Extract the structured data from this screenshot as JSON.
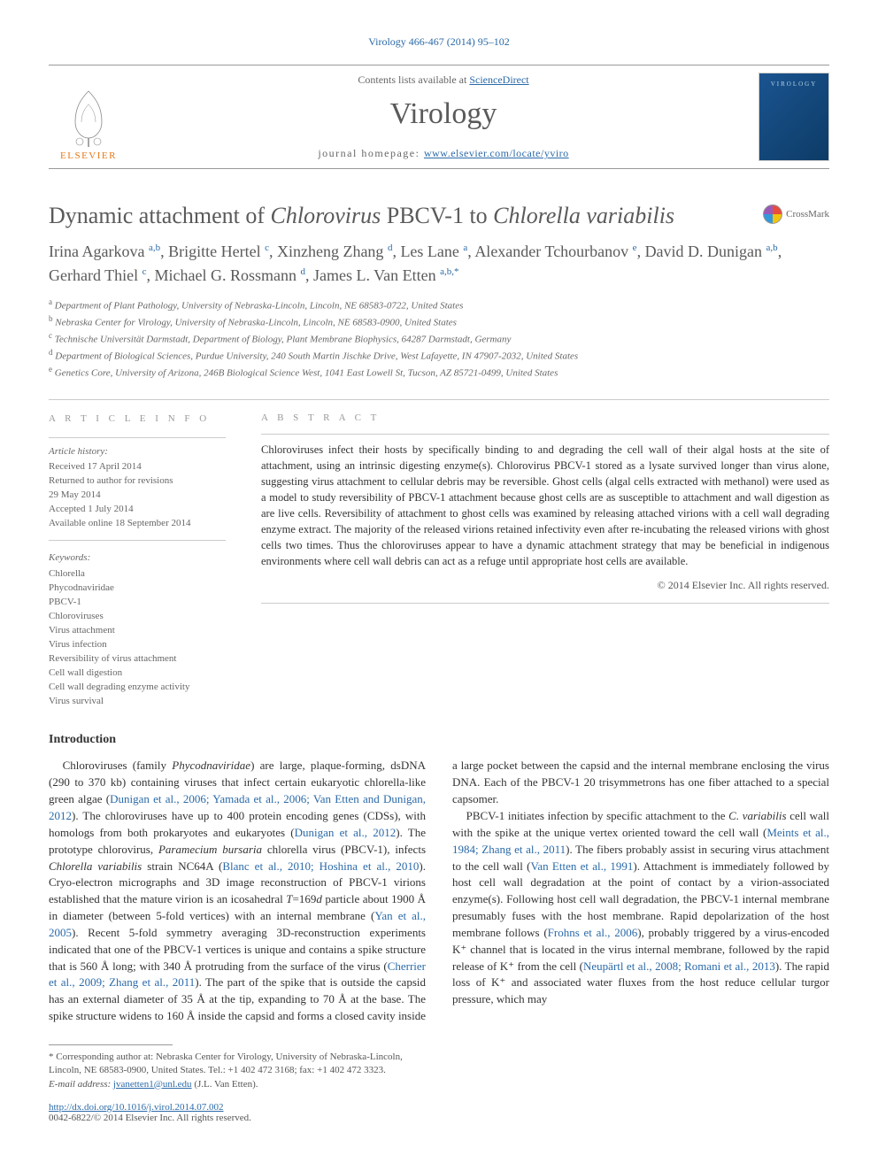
{
  "topLink": "Virology 466-467 (2014) 95–102",
  "header": {
    "contentsPrefix": "Contents lists available at ",
    "contentsLink": "ScienceDirect",
    "journalName": "Virology",
    "homepagePrefix": "journal homepage: ",
    "homepageLink": "www.elsevier.com/locate/yviro",
    "elsevierLabel": "ELSEVIER",
    "coverTitle": "VIROLOGY"
  },
  "title": {
    "prefix": "Dynamic attachment of ",
    "italic1": "Chlorovirus",
    "mid": " PBCV-1 to ",
    "italic2": "Chlorella variabilis"
  },
  "crossmark": "CrossMark",
  "authors": [
    {
      "name": "Irina Agarkova",
      "aff": "a,b"
    },
    {
      "name": "Brigitte Hertel",
      "aff": "c"
    },
    {
      "name": "Xinzheng Zhang",
      "aff": "d"
    },
    {
      "name": "Les Lane",
      "aff": "a"
    },
    {
      "name": "Alexander Tchourbanov",
      "aff": "e"
    },
    {
      "name": "David D. Dunigan",
      "aff": "a,b"
    },
    {
      "name": "Gerhard Thiel",
      "aff": "c"
    },
    {
      "name": "Michael G. Rossmann",
      "aff": "d"
    },
    {
      "name": "James L. Van Etten",
      "aff": "a,b,",
      "star": true
    }
  ],
  "affiliations": [
    {
      "sup": "a",
      "text": "Department of Plant Pathology, University of Nebraska-Lincoln, Lincoln, NE 68583-0722, United States"
    },
    {
      "sup": "b",
      "text": "Nebraska Center for Virology, University of Nebraska-Lincoln, Lincoln, NE 68583-0900, United States"
    },
    {
      "sup": "c",
      "text": "Technische Universität Darmstadt, Department of Biology, Plant Membrane Biophysics, 64287 Darmstadt, Germany"
    },
    {
      "sup": "d",
      "text": "Department of Biological Sciences, Purdue University, 240 South Martin Jischke Drive, West Lafayette, IN 47907-2032, United States"
    },
    {
      "sup": "e",
      "text": "Genetics Core, University of Arizona, 246B Biological Science West, 1041 East Lowell St, Tucson, AZ 85721-0499, United States"
    }
  ],
  "articleInfo": {
    "heading": "A R T I C L E  I N F O",
    "historyHeading": "Article history:",
    "history": [
      "Received 17 April 2014",
      "Returned to author for revisions",
      "29 May 2014",
      "Accepted 1 July 2014",
      "Available online 18 September 2014"
    ],
    "keywordsHeading": "Keywords:",
    "keywords": [
      "Chlorella",
      "Phycodnaviridae",
      "PBCV-1",
      "Chloroviruses",
      "Virus attachment",
      "Virus infection",
      "Reversibility of virus attachment",
      "Cell wall digestion",
      "Cell wall degrading enzyme activity",
      "Virus survival"
    ]
  },
  "abstract": {
    "heading": "A B S T R A C T",
    "text": "Chloroviruses infect their hosts by specifically binding to and degrading the cell wall of their algal hosts at the site of attachment, using an intrinsic digesting enzyme(s). Chlorovirus PBCV-1 stored as a lysate survived longer than virus alone, suggesting virus attachment to cellular debris may be reversible. Ghost cells (algal cells extracted with methanol) were used as a model to study reversibility of PBCV-1 attachment because ghost cells are as susceptible to attachment and wall digestion as are live cells. Reversibility of attachment to ghost cells was examined by releasing attached virions with a cell wall degrading enzyme extract. The majority of the released virions retained infectivity even after re-incubating the released virions with ghost cells two times. Thus the chloroviruses appear to have a dynamic attachment strategy that may be beneficial in indigenous environments where cell wall debris can act as a refuge until appropriate host cells are available.",
    "copyright": "© 2014 Elsevier Inc. All rights reserved."
  },
  "sectionHeading": "Introduction",
  "bodyParagraphs": [
    "Chloroviruses (family Phycodnaviridae) are large, plaque-forming, dsDNA (290 to 370 kb) containing viruses that infect certain eukaryotic chlorella-like green algae (Dunigan et al., 2006; Yamada et al., 2006; Van Etten and Dunigan, 2012). The chloroviruses have up to 400 protein encoding genes (CDSs), with homologs from both prokaryotes and eukaryotes (Dunigan et al., 2012). The prototype chlorovirus, Paramecium bursaria chlorella virus (PBCV-1), infects Chlorella variabilis strain NC64A (Blanc et al., 2010; Hoshina et al., 2010). Cryo-electron micrographs and 3D image reconstruction of PBCV-1 virions established that the mature virion is an icosahedral T=169d particle about 1900 Å in diameter (between 5-fold vertices) with an internal membrane (Yan et al., 2005). Recent 5-fold symmetry averaging 3D-reconstruction experiments indicated that one of the PBCV-1 vertices is unique and contains a spike structure that is 560 Å long; with 340 Å protruding from the surface of the virus (Cherrier et al., 2009; Zhang et al., 2011). The part of the spike that is outside the capsid has an external diameter of 35 Å at the tip, expanding to 70 Å at the base. The spike structure widens to 160 Å inside the capsid and forms a closed cavity inside a large pocket between the capsid and the internal membrane enclosing the virus DNA. Each of the PBCV-1 20 trisymmetrons has one fiber attached to a special capsomer.",
    "PBCV-1 initiates infection by specific attachment to the C. variabilis cell wall with the spike at the unique vertex oriented toward the cell wall (Meints et al., 1984; Zhang et al., 2011). The fibers probably assist in securing virus attachment to the cell wall (Van Etten et al., 1991). Attachment is immediately followed by host cell wall degradation at the point of contact by a virion-associated enzyme(s). Following host cell wall degradation, the PBCV-1 internal membrane presumably fuses with the host membrane. Rapid depolarization of the host membrane follows (Frohns et al., 2006), probably triggered by a virus-encoded K⁺ channel that is located in the virus internal membrane, followed by the rapid release of K⁺ from the cell (Neupärtl et al., 2008; Romani et al., 2013). The rapid loss of K⁺ and associated water fluxes from the host reduce cellular turgor pressure, which may"
  ],
  "footnotes": {
    "corresponding": "* Corresponding author at: Nebraska Center for Virology, University of Nebraska-Lincoln, Lincoln, NE 68583-0900, United States. Tel.: +1 402 472 3168; fax: +1 402 472 3323.",
    "emailPrefix": "E-mail address: ",
    "email": "jvanetten1@unl.edu",
    "emailSuffix": " (J.L. Van Etten)."
  },
  "doi": {
    "link": "http://dx.doi.org/10.1016/j.virol.2014.07.002",
    "issn": "0042-6822/© 2014 Elsevier Inc. All rights reserved."
  },
  "colors": {
    "link": "#2b6aa8",
    "elsevierOrange": "#e67817",
    "textGray": "#5a5a5a",
    "bodyText": "#333333",
    "lightGray": "#999999"
  }
}
